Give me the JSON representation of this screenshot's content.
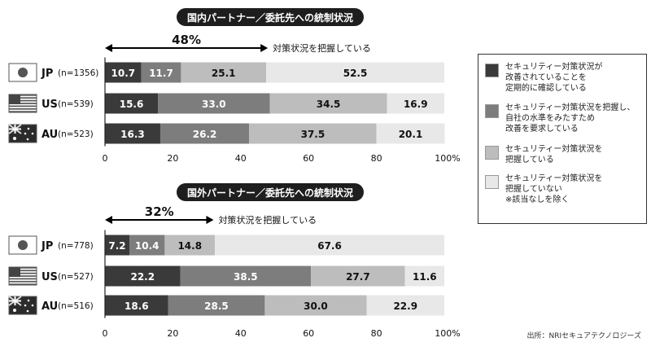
{
  "chart_data": [
    {
      "type": "bar",
      "orientation": "horizontal",
      "stacked": true,
      "title": "国内パートナー／委託先への統制状況",
      "highlight": {
        "value_label": "48%",
        "text": "対策状況を把握している",
        "range": [
          0,
          48
        ]
      },
      "categories": [
        {
          "code": "JP",
          "n": "(n=1356)",
          "flag": "japan-flag"
        },
        {
          "code": "US",
          "n": "(n=539)",
          "flag": "us-flag"
        },
        {
          "code": "AU",
          "n": "(n=523)",
          "flag": "australia-flag"
        }
      ],
      "series": [
        {
          "name": "セキュリティー対策状況が\n改善されていることを\n定期的に確認している",
          "color": "#3a3a3a",
          "values": [
            10.7,
            15.6,
            16.3
          ]
        },
        {
          "name": "セキュリティー対策状況を把握し、\n自社の水準をみたすため\n改善を要求している",
          "color": "#7d7d7d",
          "values": [
            11.7,
            33.0,
            26.2
          ]
        },
        {
          "name": "セキュリティー対策状況を\n把握している",
          "color": "#bdbdbd",
          "values": [
            25.1,
            34.5,
            37.5
          ]
        },
        {
          "name": "セキュリティー対策状況を\n把握していない\n※該当なしを除く",
          "color": "#e8e8e8",
          "values": [
            52.5,
            16.9,
            20.1
          ]
        }
      ],
      "value_labels": [
        [
          "10.7",
          "11.7",
          "25.1",
          "52.5"
        ],
        [
          "15.6",
          "33.0",
          "34.5",
          "16.9"
        ],
        [
          "16.3",
          "26.2",
          "37.5",
          "20.1"
        ]
      ],
      "xlim": [
        0,
        100
      ],
      "ticks": [
        "0",
        "20",
        "40",
        "60",
        "80",
        "100%"
      ]
    },
    {
      "type": "bar",
      "orientation": "horizontal",
      "stacked": true,
      "title": "国外パートナー／委託先への統制状況",
      "highlight": {
        "value_label": "32%",
        "text": "対策状況を把握している",
        "range": [
          0,
          32
        ]
      },
      "categories": [
        {
          "code": "JP",
          "n": "(n=778)",
          "flag": "japan-flag"
        },
        {
          "code": "US",
          "n": "(n=527)",
          "flag": "us-flag"
        },
        {
          "code": "AU",
          "n": "(n=516)",
          "flag": "australia-flag"
        }
      ],
      "series": [
        {
          "name": "セキュリティー対策状況が\n改善されていることを\n定期的に確認している",
          "color": "#3a3a3a",
          "values": [
            7.2,
            22.2,
            18.6
          ]
        },
        {
          "name": "セキュリティー対策状況を把握し、\n自社の水準をみたすため\n改善を要求している",
          "color": "#7d7d7d",
          "values": [
            10.4,
            38.5,
            28.5
          ]
        },
        {
          "name": "セキュリティー対策状況を\n把握している",
          "color": "#bdbdbd",
          "values": [
            14.8,
            27.7,
            30.0
          ]
        },
        {
          "name": "セキュリティー対策状況を\n把握していない\n※該当なしを除く",
          "color": "#e8e8e8",
          "values": [
            67.6,
            11.6,
            22.9
          ]
        }
      ],
      "value_labels": [
        [
          "7.2",
          "10.4",
          "14.8",
          "67.6"
        ],
        [
          "22.2",
          "38.5",
          "27.7",
          "11.6"
        ],
        [
          "18.6",
          "28.5",
          "30.0",
          "22.9"
        ]
      ],
      "xlim": [
        0,
        100
      ],
      "ticks": [
        "0",
        "20",
        "40",
        "60",
        "80",
        "100%"
      ]
    }
  ],
  "legend": [
    {
      "label": "セキュリティー対策状況が\n改善されていることを\n定期的に確認している",
      "color": "#3a3a3a"
    },
    {
      "label": "セキュリティー対策状況を把握し、\n自社の水準をみたすため\n改善を要求している",
      "color": "#7d7d7d"
    },
    {
      "label": "セキュリティー対策状況を\n把握している",
      "color": "#bdbdbd"
    },
    {
      "label": "セキュリティー対策状況を\n把握していない\n※該当なしを除く",
      "color": "#e8e8e8"
    }
  ],
  "source": "出所：NRIセキュアテクノロジーズ"
}
